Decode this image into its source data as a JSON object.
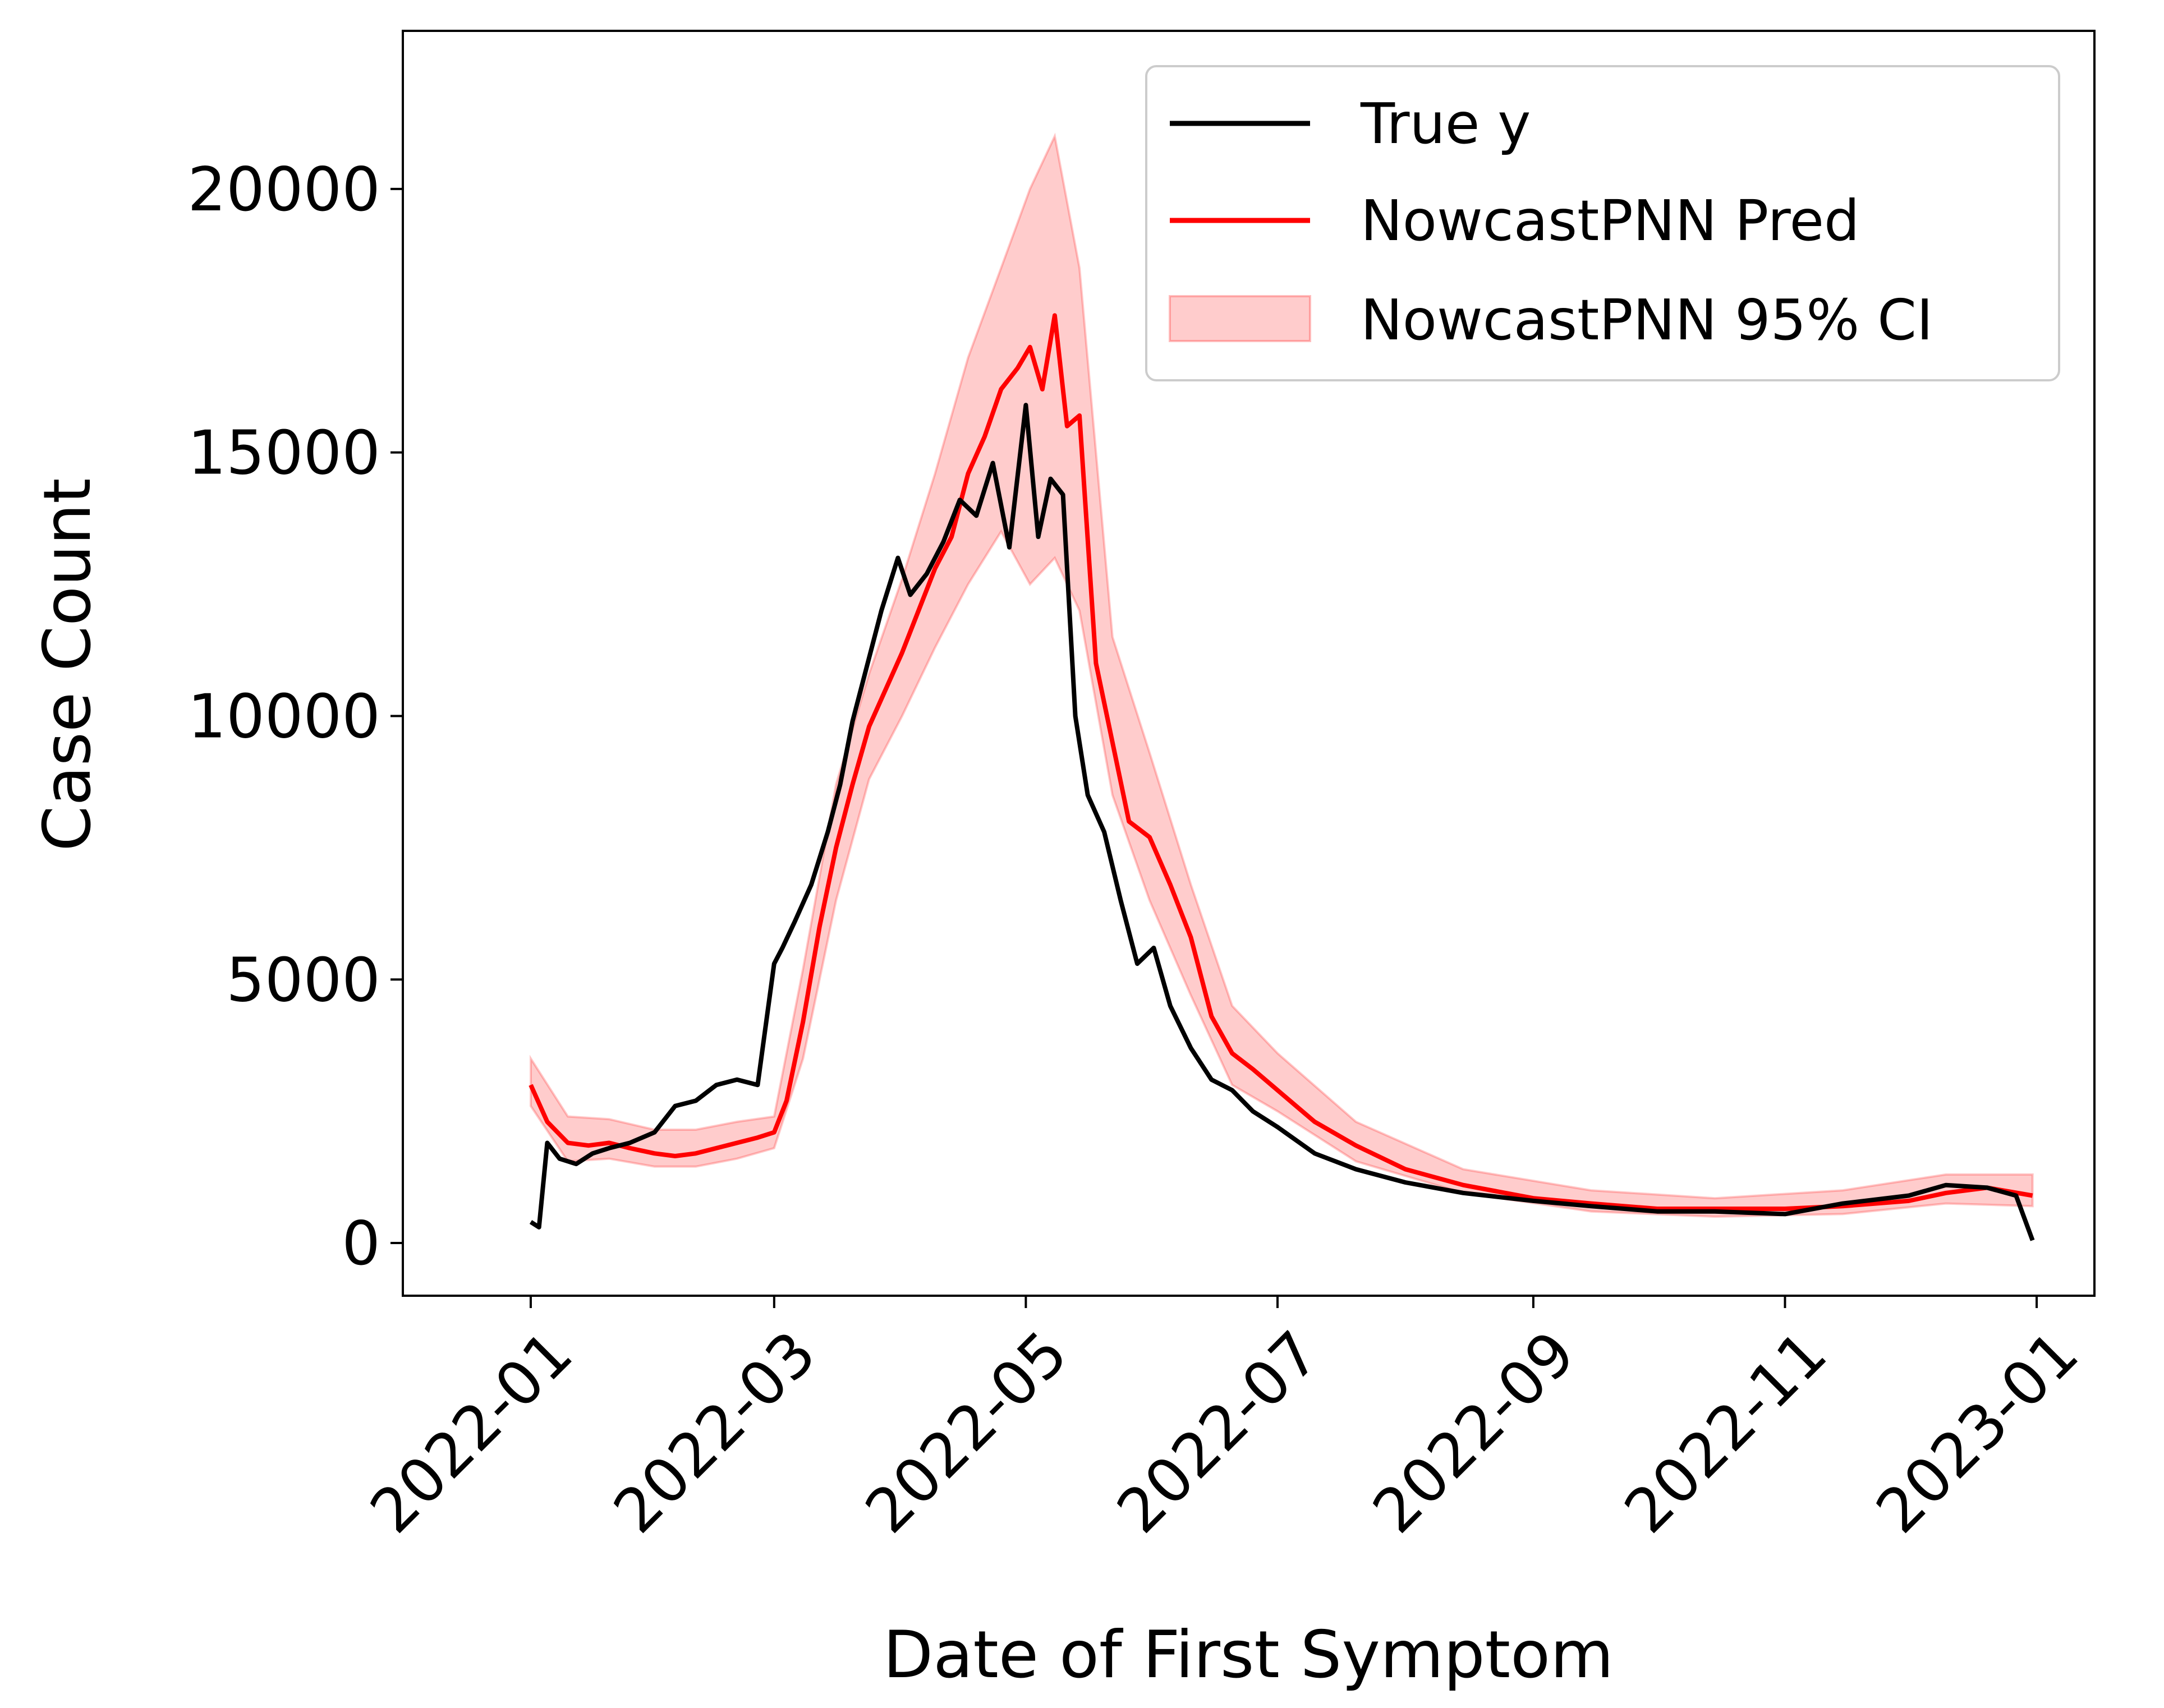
{
  "chart_data": {
    "type": "line",
    "xlabel": "Date of First Symptom",
    "ylabel": "Case Count",
    "xlim": [
      "2021-12-01",
      "2023-01-15"
    ],
    "ylim": [
      -1000,
      23000
    ],
    "x_ticks": [
      "2022-01",
      "2022-03",
      "2022-05",
      "2022-07",
      "2022-09",
      "2022-11",
      "2023-01"
    ],
    "y_ticks": [
      0,
      5000,
      10000,
      15000,
      20000
    ],
    "legend": {
      "location": "top-right"
    },
    "colors": {
      "true": "#000000",
      "pred": "#ff0000",
      "ci": "#ff0000"
    },
    "series": [
      {
        "name": "True y",
        "type": "line",
        "x": [
          "2022-01-01",
          "2022-01-03",
          "2022-01-05",
          "2022-01-08",
          "2022-01-12",
          "2022-01-16",
          "2022-01-20",
          "2022-01-25",
          "2022-01-31",
          "2022-02-05",
          "2022-02-10",
          "2022-02-15",
          "2022-02-20",
          "2022-02-25",
          "2022-03-01",
          "2022-03-03",
          "2022-03-06",
          "2022-03-10",
          "2022-03-14",
          "2022-03-17",
          "2022-03-20",
          "2022-03-23",
          "2022-03-27",
          "2022-03-31",
          "2022-04-03",
          "2022-04-07",
          "2022-04-11",
          "2022-04-15",
          "2022-04-19",
          "2022-04-23",
          "2022-04-27",
          "2022-05-01",
          "2022-05-04",
          "2022-05-07",
          "2022-05-10",
          "2022-05-13",
          "2022-05-16",
          "2022-05-20",
          "2022-05-24",
          "2022-05-28",
          "2022-06-01",
          "2022-06-05",
          "2022-06-10",
          "2022-06-15",
          "2022-06-20",
          "2022-06-25",
          "2022-07-01",
          "2022-07-10",
          "2022-07-20",
          "2022-08-01",
          "2022-08-15",
          "2022-09-01",
          "2022-09-15",
          "2022-10-01",
          "2022-10-15",
          "2022-11-01",
          "2022-11-15",
          "2022-12-01",
          "2022-12-10",
          "2022-12-20",
          "2022-12-27",
          "2022-12-31"
        ],
        "y": [
          400,
          300,
          1900,
          1600,
          1500,
          1700,
          1800,
          1900,
          2100,
          2600,
          2700,
          3000,
          3100,
          3000,
          5300,
          5600,
          6100,
          6800,
          7800,
          8700,
          9900,
          10800,
          12000,
          13000,
          12300,
          12700,
          13300,
          14100,
          13800,
          14800,
          13200,
          15900,
          13400,
          14500,
          14200,
          10000,
          8500,
          7800,
          6500,
          5300,
          5600,
          4500,
          3700,
          3100,
          2900,
          2500,
          2200,
          1700,
          1400,
          1150,
          950,
          800,
          700,
          600,
          600,
          550,
          750,
          900,
          1100,
          1050,
          900,
          50
        ]
      },
      {
        "name": "NowcastPNN Pred",
        "type": "line",
        "x": [
          "2022-01-01",
          "2022-01-05",
          "2022-01-10",
          "2022-01-15",
          "2022-01-20",
          "2022-01-25",
          "2022-01-31",
          "2022-02-05",
          "2022-02-10",
          "2022-02-15",
          "2022-02-20",
          "2022-02-25",
          "2022-03-01",
          "2022-03-04",
          "2022-03-08",
          "2022-03-12",
          "2022-03-16",
          "2022-03-20",
          "2022-03-24",
          "2022-03-28",
          "2022-04-01",
          "2022-04-05",
          "2022-04-09",
          "2022-04-13",
          "2022-04-17",
          "2022-04-21",
          "2022-04-25",
          "2022-04-29",
          "2022-05-02",
          "2022-05-05",
          "2022-05-08",
          "2022-05-11",
          "2022-05-14",
          "2022-05-18",
          "2022-05-22",
          "2022-05-26",
          "2022-05-31",
          "2022-06-05",
          "2022-06-10",
          "2022-06-15",
          "2022-06-20",
          "2022-06-25",
          "2022-07-01",
          "2022-07-10",
          "2022-07-20",
          "2022-08-01",
          "2022-08-15",
          "2022-09-01",
          "2022-09-15",
          "2022-10-01",
          "2022-10-15",
          "2022-11-01",
          "2022-11-15",
          "2022-12-01",
          "2022-12-10",
          "2022-12-20",
          "2022-12-31"
        ],
        "y": [
          3000,
          2300,
          1900,
          1850,
          1900,
          1800,
          1700,
          1650,
          1700,
          1800,
          1900,
          2000,
          2100,
          2700,
          4200,
          6000,
          7500,
          8700,
          9800,
          10500,
          11200,
          12000,
          12800,
          13400,
          14600,
          15300,
          16200,
          16600,
          17000,
          16200,
          17600,
          15500,
          15700,
          11000,
          9500,
          8000,
          7700,
          6800,
          5800,
          4300,
          3600,
          3300,
          2900,
          2300,
          1850,
          1400,
          1100,
          850,
          750,
          650,
          650,
          650,
          700,
          800,
          950,
          1050,
          900
        ]
      },
      {
        "name": "NowcastPNN 95% CI",
        "type": "area",
        "x": [
          "2022-01-01",
          "2022-01-10",
          "2022-01-20",
          "2022-01-31",
          "2022-02-10",
          "2022-02-20",
          "2022-03-01",
          "2022-03-08",
          "2022-03-16",
          "2022-03-24",
          "2022-04-01",
          "2022-04-09",
          "2022-04-17",
          "2022-04-25",
          "2022-05-02",
          "2022-05-08",
          "2022-05-14",
          "2022-05-22",
          "2022-05-31",
          "2022-06-10",
          "2022-06-20",
          "2022-07-01",
          "2022-07-20",
          "2022-08-15",
          "2022-09-15",
          "2022-10-15",
          "2022-11-15",
          "2022-12-10",
          "2022-12-31"
        ],
        "lower": [
          2600,
          1550,
          1600,
          1450,
          1450,
          1600,
          1800,
          3500,
          6500,
          8800,
          10000,
          11300,
          12500,
          13500,
          12500,
          13000,
          12000,
          8500,
          6500,
          4700,
          3000,
          2500,
          1550,
          950,
          600,
          500,
          550,
          750,
          700
        ],
        "upper": [
          3500,
          2400,
          2350,
          2150,
          2150,
          2300,
          2400,
          5200,
          8700,
          10800,
          12600,
          14600,
          16800,
          18500,
          20000,
          21000,
          18500,
          11500,
          9300,
          6800,
          4500,
          3600,
          2300,
          1400,
          1000,
          850,
          1000,
          1300,
          1300
        ]
      }
    ]
  }
}
